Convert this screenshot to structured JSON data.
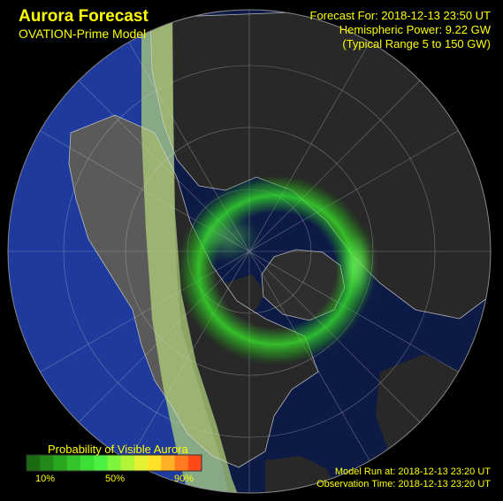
{
  "header": {
    "title": "Aurora Forecast",
    "subtitle": "OVATION-Prime Model"
  },
  "forecast": {
    "forecast_for": "Forecast For: 2018-12-13 23:50 UT",
    "hemispheric_power": "Hemispheric Power:  9.22 GW",
    "typical_range": "(Typical Range 5 to 150 GW)"
  },
  "legend": {
    "title": "Probability of Visible Aurora",
    "ticks": [
      "10%",
      "50%",
      "90%"
    ],
    "colors": [
      "#1a6a10",
      "#218a18",
      "#29a81f",
      "#33c42a",
      "#3ddf35",
      "#4df041",
      "#7ef43c",
      "#b2f537",
      "#e4f231",
      "#ffe12a",
      "#ffb024",
      "#ff7b1e",
      "#ff4a17"
    ]
  },
  "footer": {
    "model_run": "Model Run at: 2018-12-13 23:20 UT",
    "observation_time": "Observation Time: 2018-12-13 23:20 UT"
  },
  "map": {
    "ocean_color": "#1d3a9c",
    "land_color": "#5a5a5a",
    "night_color": "#000000",
    "daylight_color": "#b7d97e",
    "aurora_color": "#39ff2a",
    "coast_color": "#d9d9d9"
  }
}
